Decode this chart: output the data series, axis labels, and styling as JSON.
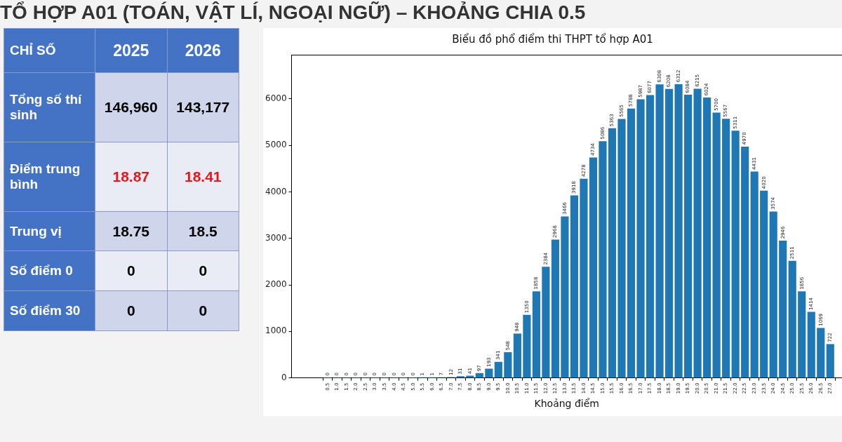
{
  "chart_data": [
    {
      "type": "other",
      "title": "TỔ HỢP A01 (TOÁN, VẬT LÍ, NGOẠI NGỮ) – KHOẢNG CHIA 0.5",
      "ylabel": "CHỈ SỐ",
      "categories": [
        "2025",
        "2026"
      ],
      "y_categories": [
        "Tổng số thí sinh",
        "Điểm trung bình",
        "Trung vị",
        "Số điểm 0",
        "Số điểm 30"
      ],
      "cell_labels": [
        [
          "146,960",
          "143,177"
        ],
        [
          "18.87",
          "18.41"
        ],
        [
          "18.75",
          "18.5"
        ],
        [
          "0",
          "0"
        ],
        [
          "0",
          "0"
        ]
      ]
    },
    {
      "type": "bar",
      "title": "Biểu đồ phổ điểm thi THPT tổ hợp A01",
      "xlabel": "Khoảng điểm",
      "categories": [
        "0.5",
        "1.0",
        "1.5",
        "2.0",
        "2.5",
        "3.0",
        "3.5",
        "4.0",
        "4.5",
        "5.0",
        "5.5",
        "6.0",
        "6.5",
        "7.0",
        "7.5",
        "8.0",
        "8.5",
        "9.0",
        "9.5",
        "10.0",
        "10.5",
        "11.0",
        "11.5",
        "12.0",
        "12.5",
        "13.0",
        "13.5",
        "14.0",
        "14.5",
        "15.0",
        "15.5",
        "16.0",
        "16.5",
        "17.0",
        "17.5",
        "18.0",
        "18.5",
        "19.0",
        "19.5",
        "20.0",
        "20.5",
        "21.0",
        "21.5",
        "22.0",
        "22.5",
        "23.0",
        "23.5",
        "24.0",
        "24.5",
        "25.0",
        "25.5",
        "26.0",
        "26.5",
        "27.0"
      ],
      "values": [
        0,
        0,
        0,
        0,
        0,
        0,
        0,
        0,
        0,
        0,
        1,
        1,
        7,
        12,
        31,
        41,
        97,
        193,
        341,
        548,
        948,
        1350,
        1858,
        2384,
        2968,
        3466,
        3918,
        4278,
        4734,
        5086,
        5363,
        5565,
        5788,
        5987,
        6077,
        6308,
        6208,
        6312,
        6084,
        6215,
        6024,
        5700,
        5567,
        5311,
        4970,
        4431,
        4020,
        3574,
        2946,
        2511,
        1856,
        1414,
        1069,
        722
      ],
      "color": "#1f77b4",
      "ylim": [
        0,
        6950
      ],
      "yticks": [
        0,
        1000,
        2000,
        3000,
        4000,
        5000,
        6000
      ],
      "data_labels": true,
      "grid": false,
      "legend": false
    }
  ]
}
